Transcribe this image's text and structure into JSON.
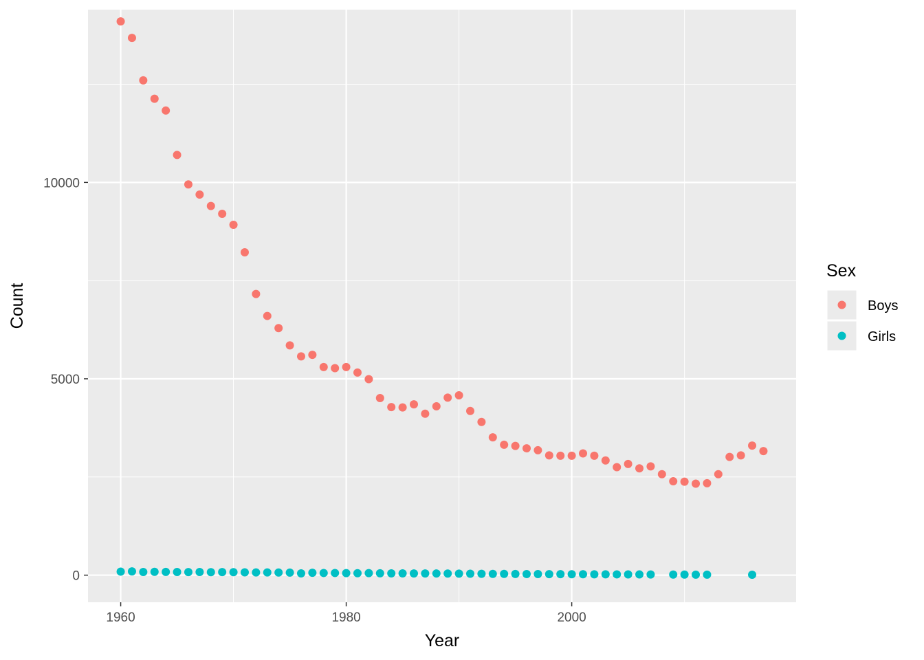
{
  "chart_data": {
    "type": "scatter",
    "title": "",
    "xlabel": "Year",
    "ylabel": "Count",
    "xlim": [
      1957.1,
      2019.9
    ],
    "ylim": [
      -690,
      14400
    ],
    "x_ticks": [
      1960,
      1980,
      2000
    ],
    "x_tick_labels": [
      "1960",
      "1980",
      "2000"
    ],
    "y_ticks": [
      0,
      5000,
      10000
    ],
    "y_tick_labels": [
      "0",
      "5000",
      "10000"
    ],
    "grid": true,
    "legend": {
      "title": "Sex",
      "position": "right"
    },
    "series": [
      {
        "name": "Boys",
        "color": "#F8766D",
        "x": [
          1960,
          1961,
          1962,
          1963,
          1964,
          1965,
          1966,
          1967,
          1968,
          1969,
          1970,
          1971,
          1972,
          1973,
          1974,
          1975,
          1976,
          1977,
          1978,
          1979,
          1980,
          1981,
          1982,
          1983,
          1984,
          1985,
          1986,
          1987,
          1988,
          1989,
          1990,
          1991,
          1992,
          1993,
          1994,
          1995,
          1996,
          1997,
          1998,
          1999,
          2000,
          2001,
          2002,
          2003,
          2004,
          2005,
          2006,
          2007,
          2008,
          2009,
          2010,
          2011,
          2012,
          2013,
          2014,
          2015,
          2016,
          2017
        ],
        "y": [
          14100,
          13680,
          12600,
          12130,
          11830,
          10700,
          9950,
          9690,
          9400,
          9200,
          8920,
          8220,
          7160,
          6600,
          6290,
          5850,
          5570,
          5610,
          5300,
          5270,
          5300,
          5160,
          4990,
          4510,
          4280,
          4270,
          4350,
          4110,
          4300,
          4520,
          4580,
          4180,
          3900,
          3510,
          3320,
          3290,
          3230,
          3180,
          3050,
          3040,
          3040,
          3100,
          3040,
          2920,
          2750,
          2830,
          2720,
          2770,
          2570,
          2390,
          2380,
          2330,
          2340,
          2570,
          3010,
          3050,
          3300,
          3160
        ]
      },
      {
        "name": "Girls",
        "color": "#00BFC4",
        "x": [
          1960,
          1961,
          1962,
          1963,
          1964,
          1965,
          1966,
          1967,
          1968,
          1969,
          1970,
          1971,
          1972,
          1973,
          1974,
          1975,
          1976,
          1977,
          1978,
          1979,
          1980,
          1981,
          1982,
          1983,
          1984,
          1985,
          1986,
          1987,
          1988,
          1989,
          1990,
          1991,
          1992,
          1993,
          1994,
          1995,
          1996,
          1997,
          1998,
          1999,
          2000,
          2001,
          2002,
          2003,
          2004,
          2005,
          2006,
          2007,
          2009,
          2010,
          2011,
          2012,
          2016
        ],
        "y": [
          90,
          95,
          80,
          85,
          82,
          80,
          78,
          80,
          75,
          78,
          75,
          72,
          70,
          70,
          68,
          65,
          45,
          60,
          55,
          55,
          52,
          50,
          52,
          48,
          46,
          45,
          44,
          44,
          42,
          40,
          38,
          36,
          34,
          33,
          32,
          30,
          28,
          27,
          26,
          25,
          24,
          23,
          22,
          21,
          20,
          19,
          18,
          17,
          15,
          14,
          13,
          12,
          10
        ]
      }
    ]
  }
}
